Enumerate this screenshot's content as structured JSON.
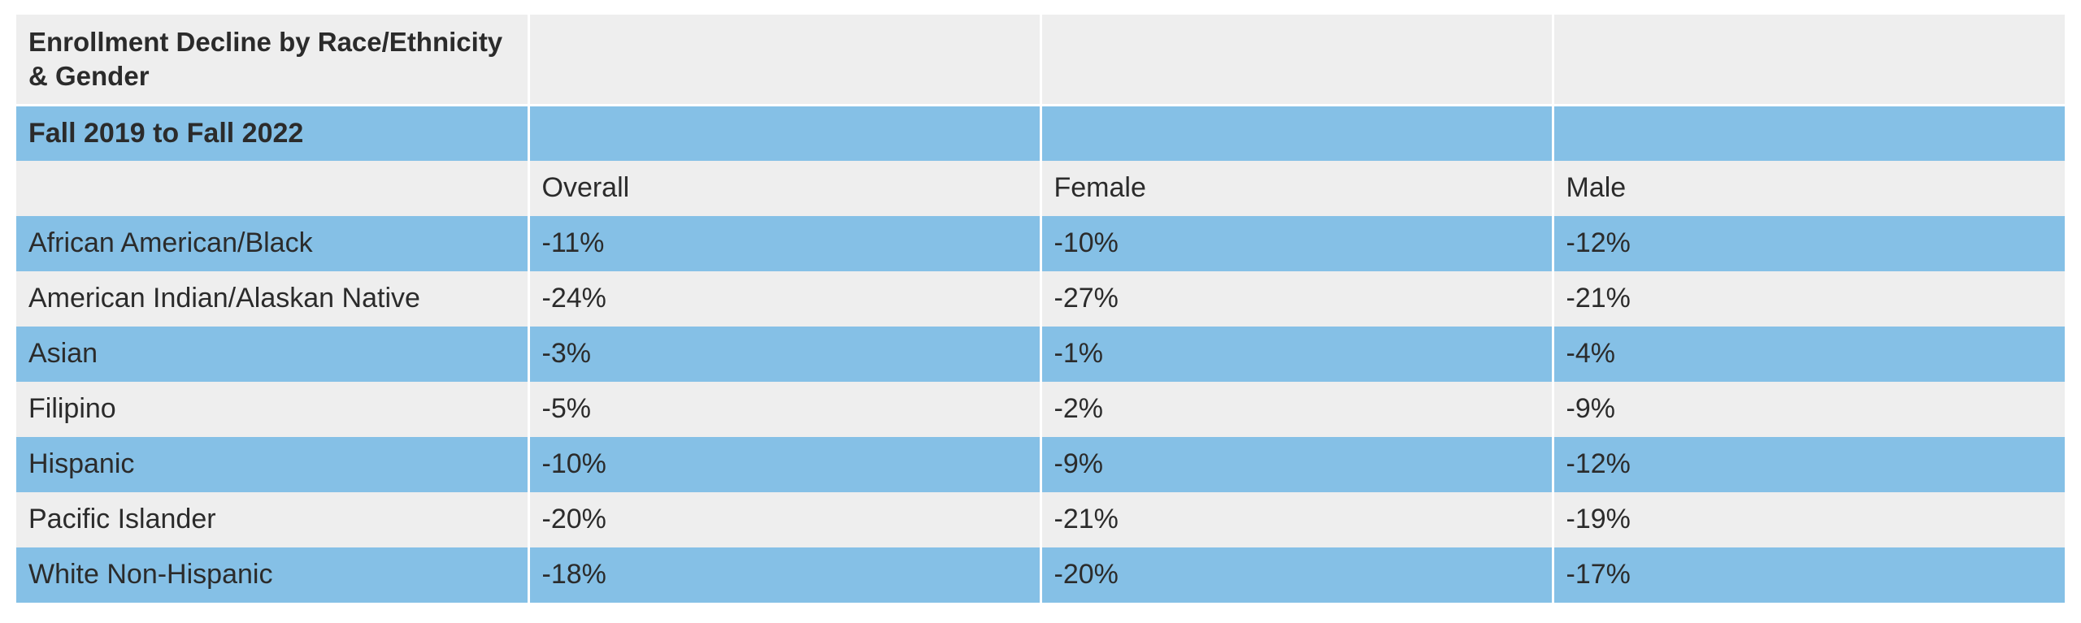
{
  "table": {
    "title": "Enrollment Decline by Race/Ethnicity & Gender",
    "period": "Fall 2019 to Fall 2022",
    "headers": [
      "Overall",
      "Female",
      "Male"
    ],
    "rows": [
      {
        "group": "African American/Black",
        "overall": "-11%",
        "female": "-10%",
        "male": "-12%"
      },
      {
        "group": "American Indian/Alaskan Native",
        "overall": "-24%",
        "female": "-27%",
        "male": "-21%"
      },
      {
        "group": "Asian",
        "overall": "-3%",
        "female": "-1%",
        "male": "-4%"
      },
      {
        "group": "Filipino",
        "overall": "-5%",
        "female": "-2%",
        "male": "-9%"
      },
      {
        "group": "Hispanic",
        "overall": "-10%",
        "female": "-9%",
        "male": "-12%"
      },
      {
        "group": "Pacific Islander",
        "overall": "-20%",
        "female": "-21%",
        "male": "-19%"
      },
      {
        "group": "White Non-Hispanic",
        "overall": "-18%",
        "female": "-20%",
        "male": "-17%"
      }
    ]
  },
  "colors": {
    "light_row": "#eeeeee",
    "blue_row": "#85c0e6",
    "text": "#2b2b2b"
  }
}
